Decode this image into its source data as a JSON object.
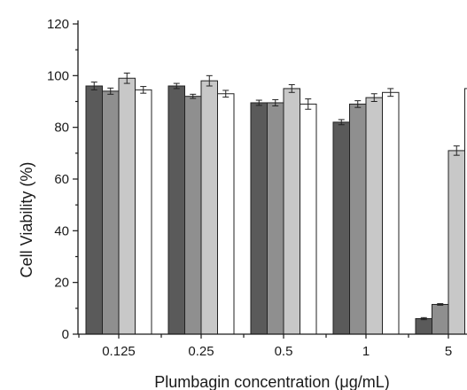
{
  "chart_data": {
    "type": "bar",
    "title": "",
    "xlabel": "Plumbagin concentration (μg/mL)",
    "ylabel": "Cell Viability (%)",
    "ylim": [
      0,
      120
    ],
    "yticks": [
      0,
      20,
      40,
      60,
      80,
      100,
      120
    ],
    "categories": [
      "0.125",
      "0.25",
      "0.5",
      "1",
      "5"
    ],
    "legend": "none",
    "grid": false,
    "series": [
      {
        "color": "#5a5a5a",
        "values": [
          96,
          96,
          89.5,
          82,
          6
        ],
        "errors": [
          1.5,
          1,
          1,
          1,
          0.4
        ]
      },
      {
        "color": "#8f8f8f",
        "values": [
          94,
          92,
          89.5,
          89,
          11.5
        ],
        "errors": [
          1.2,
          0.8,
          1.2,
          1.3,
          0.3
        ]
      },
      {
        "color": "#c8c8c8",
        "values": [
          99,
          98,
          95,
          91.5,
          71
        ],
        "errors": [
          2,
          2,
          1.5,
          1.5,
          1.8
        ]
      },
      {
        "color": "#ffffff",
        "values": [
          94.5,
          93,
          89,
          93.5,
          95
        ],
        "errors": [
          1.3,
          1.3,
          2,
          1.5,
          1.3
        ]
      }
    ]
  }
}
